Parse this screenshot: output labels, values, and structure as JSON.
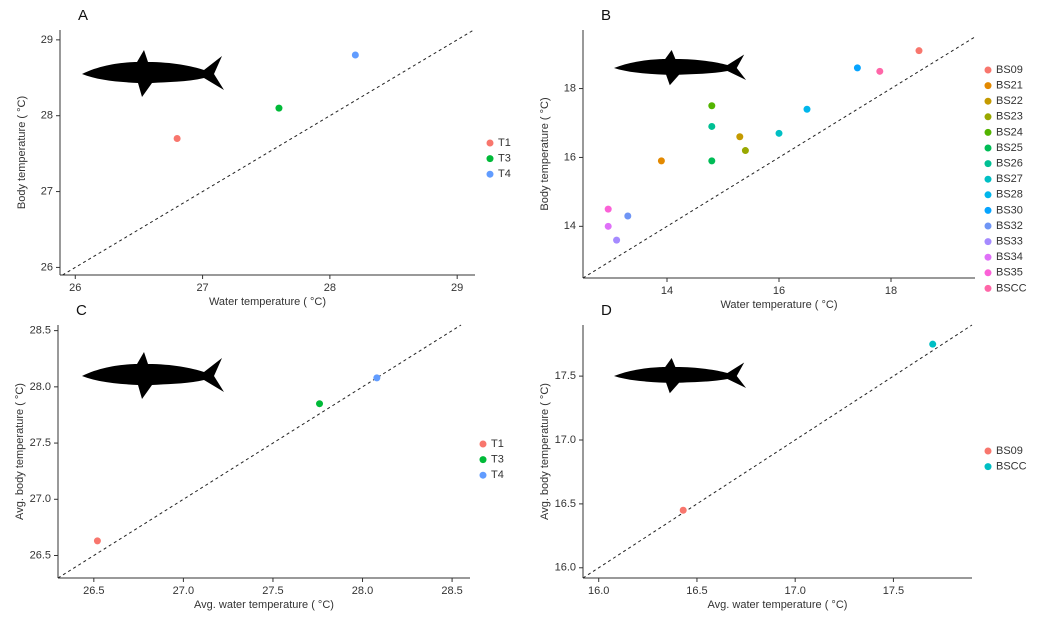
{
  "chart_data": [
    {
      "type": "scatter",
      "title": "A",
      "x_label": "Water temperature ( °C)",
      "y_label": "Body temperature ( °C)",
      "xlim": [
        25.88,
        29.14
      ],
      "ylim": [
        25.9,
        29.13
      ],
      "xticks": [
        26,
        27,
        28,
        29
      ],
      "yticks": [
        26,
        27,
        28,
        29
      ],
      "series": [
        {
          "name": "T1",
          "color": "#F8766D",
          "x": [
            26.8
          ],
          "values": [
            27.7
          ]
        },
        {
          "name": "T3",
          "color": "#00BA38",
          "x": [
            27.6
          ],
          "values": [
            28.1
          ]
        },
        {
          "name": "T4",
          "color": "#619CFF",
          "x": [
            28.2
          ],
          "values": [
            28.8
          ]
        }
      ]
    },
    {
      "type": "scatter",
      "title": "B",
      "x_label": "Water temperature ( °C)",
      "y_label": "Body temperature ( °C)",
      "xlim": [
        12.5,
        19.5
      ],
      "ylim": [
        12.5,
        19.7
      ],
      "xticks": [
        14,
        16,
        18
      ],
      "yticks": [
        14,
        16,
        18
      ],
      "series": [
        {
          "name": "BS09",
          "color": "#F8766D",
          "x": [
            18.5
          ],
          "values": [
            19.1
          ]
        },
        {
          "name": "BS21",
          "color": "#E38900",
          "x": [
            13.9
          ],
          "values": [
            15.9
          ]
        },
        {
          "name": "BS22",
          "color": "#C49A00",
          "x": [
            15.3
          ],
          "values": [
            16.6
          ]
        },
        {
          "name": "BS23",
          "color": "#99A800",
          "x": [
            15.4
          ],
          "values": [
            16.2
          ]
        },
        {
          "name": "BS24",
          "color": "#53B400",
          "x": [
            14.8
          ],
          "values": [
            17.5
          ]
        },
        {
          "name": "BS25",
          "color": "#00BC56",
          "x": [
            14.8
          ],
          "values": [
            15.9
          ]
        },
        {
          "name": "BS26",
          "color": "#00C094",
          "x": [
            14.8
          ],
          "values": [
            16.9
          ]
        },
        {
          "name": "BS27",
          "color": "#00BFC4",
          "x": [
            16.0
          ],
          "values": [
            16.7
          ]
        },
        {
          "name": "BS28",
          "color": "#00B6EB",
          "x": [
            16.5
          ],
          "values": [
            17.4
          ]
        },
        {
          "name": "BS30",
          "color": "#06A4FF",
          "x": [
            17.4
          ],
          "values": [
            18.6
          ]
        },
        {
          "name": "BS32",
          "color": "#6F95F5",
          "x": [
            13.3
          ],
          "values": [
            14.3
          ]
        },
        {
          "name": "BS33",
          "color": "#A58AFF",
          "x": [
            13.1
          ],
          "values": [
            13.6
          ]
        },
        {
          "name": "BS34",
          "color": "#DF70F8",
          "x": [
            12.95
          ],
          "values": [
            14.0
          ]
        },
        {
          "name": "BS35",
          "color": "#FB61D7",
          "x": [
            12.95
          ],
          "values": [
            14.5
          ]
        },
        {
          "name": "BSCC",
          "color": "#FF66A8",
          "x": [
            17.8
          ],
          "values": [
            18.5
          ]
        }
      ]
    },
    {
      "type": "scatter",
      "title": "C",
      "x_label": "Avg. water temperature ( °C)",
      "y_label": "Avg. body temperature ( °C)",
      "xlim": [
        26.3,
        28.6
      ],
      "ylim": [
        26.3,
        28.55
      ],
      "xticks": [
        26.5,
        {
          "value": 27,
          "label": "27.0"
        },
        27.5,
        {
          "value": 28,
          "label": "28.0"
        },
        28.5
      ],
      "yticks": [
        26.5,
        {
          "value": 27,
          "label": "27.0"
        },
        27.5,
        {
          "value": 28,
          "label": "28.0"
        },
        28.5
      ],
      "series": [
        {
          "name": "T1",
          "color": "#F8766D",
          "x": [
            26.52
          ],
          "values": [
            26.63
          ]
        },
        {
          "name": "T3",
          "color": "#00BA38",
          "x": [
            27.76
          ],
          "values": [
            27.85
          ]
        },
        {
          "name": "T4",
          "color": "#619CFF",
          "x": [
            28.08
          ],
          "values": [
            28.08
          ]
        }
      ]
    },
    {
      "type": "scatter",
      "title": "D",
      "x_label": "Avg. water temperature ( °C)",
      "y_label": "Avg. body temperature ( °C)",
      "xlim": [
        15.92,
        17.9
      ],
      "ylim": [
        15.92,
        17.9
      ],
      "xticks": [
        {
          "value": 16,
          "label": "16.0"
        },
        16.5,
        {
          "value": 17,
          "label": "17.0"
        },
        17.5
      ],
      "yticks": [
        {
          "value": 16,
          "label": "16.0"
        },
        16.5,
        {
          "value": 17,
          "label": "17.0"
        },
        17.5
      ],
      "series": [
        {
          "name": "BS09",
          "color": "#F8766D",
          "x": [
            16.43
          ],
          "values": [
            16.45
          ]
        },
        {
          "name": "BSCC",
          "color": "#00BFC4",
          "x": [
            17.7
          ],
          "values": [
            17.75
          ]
        }
      ]
    }
  ]
}
